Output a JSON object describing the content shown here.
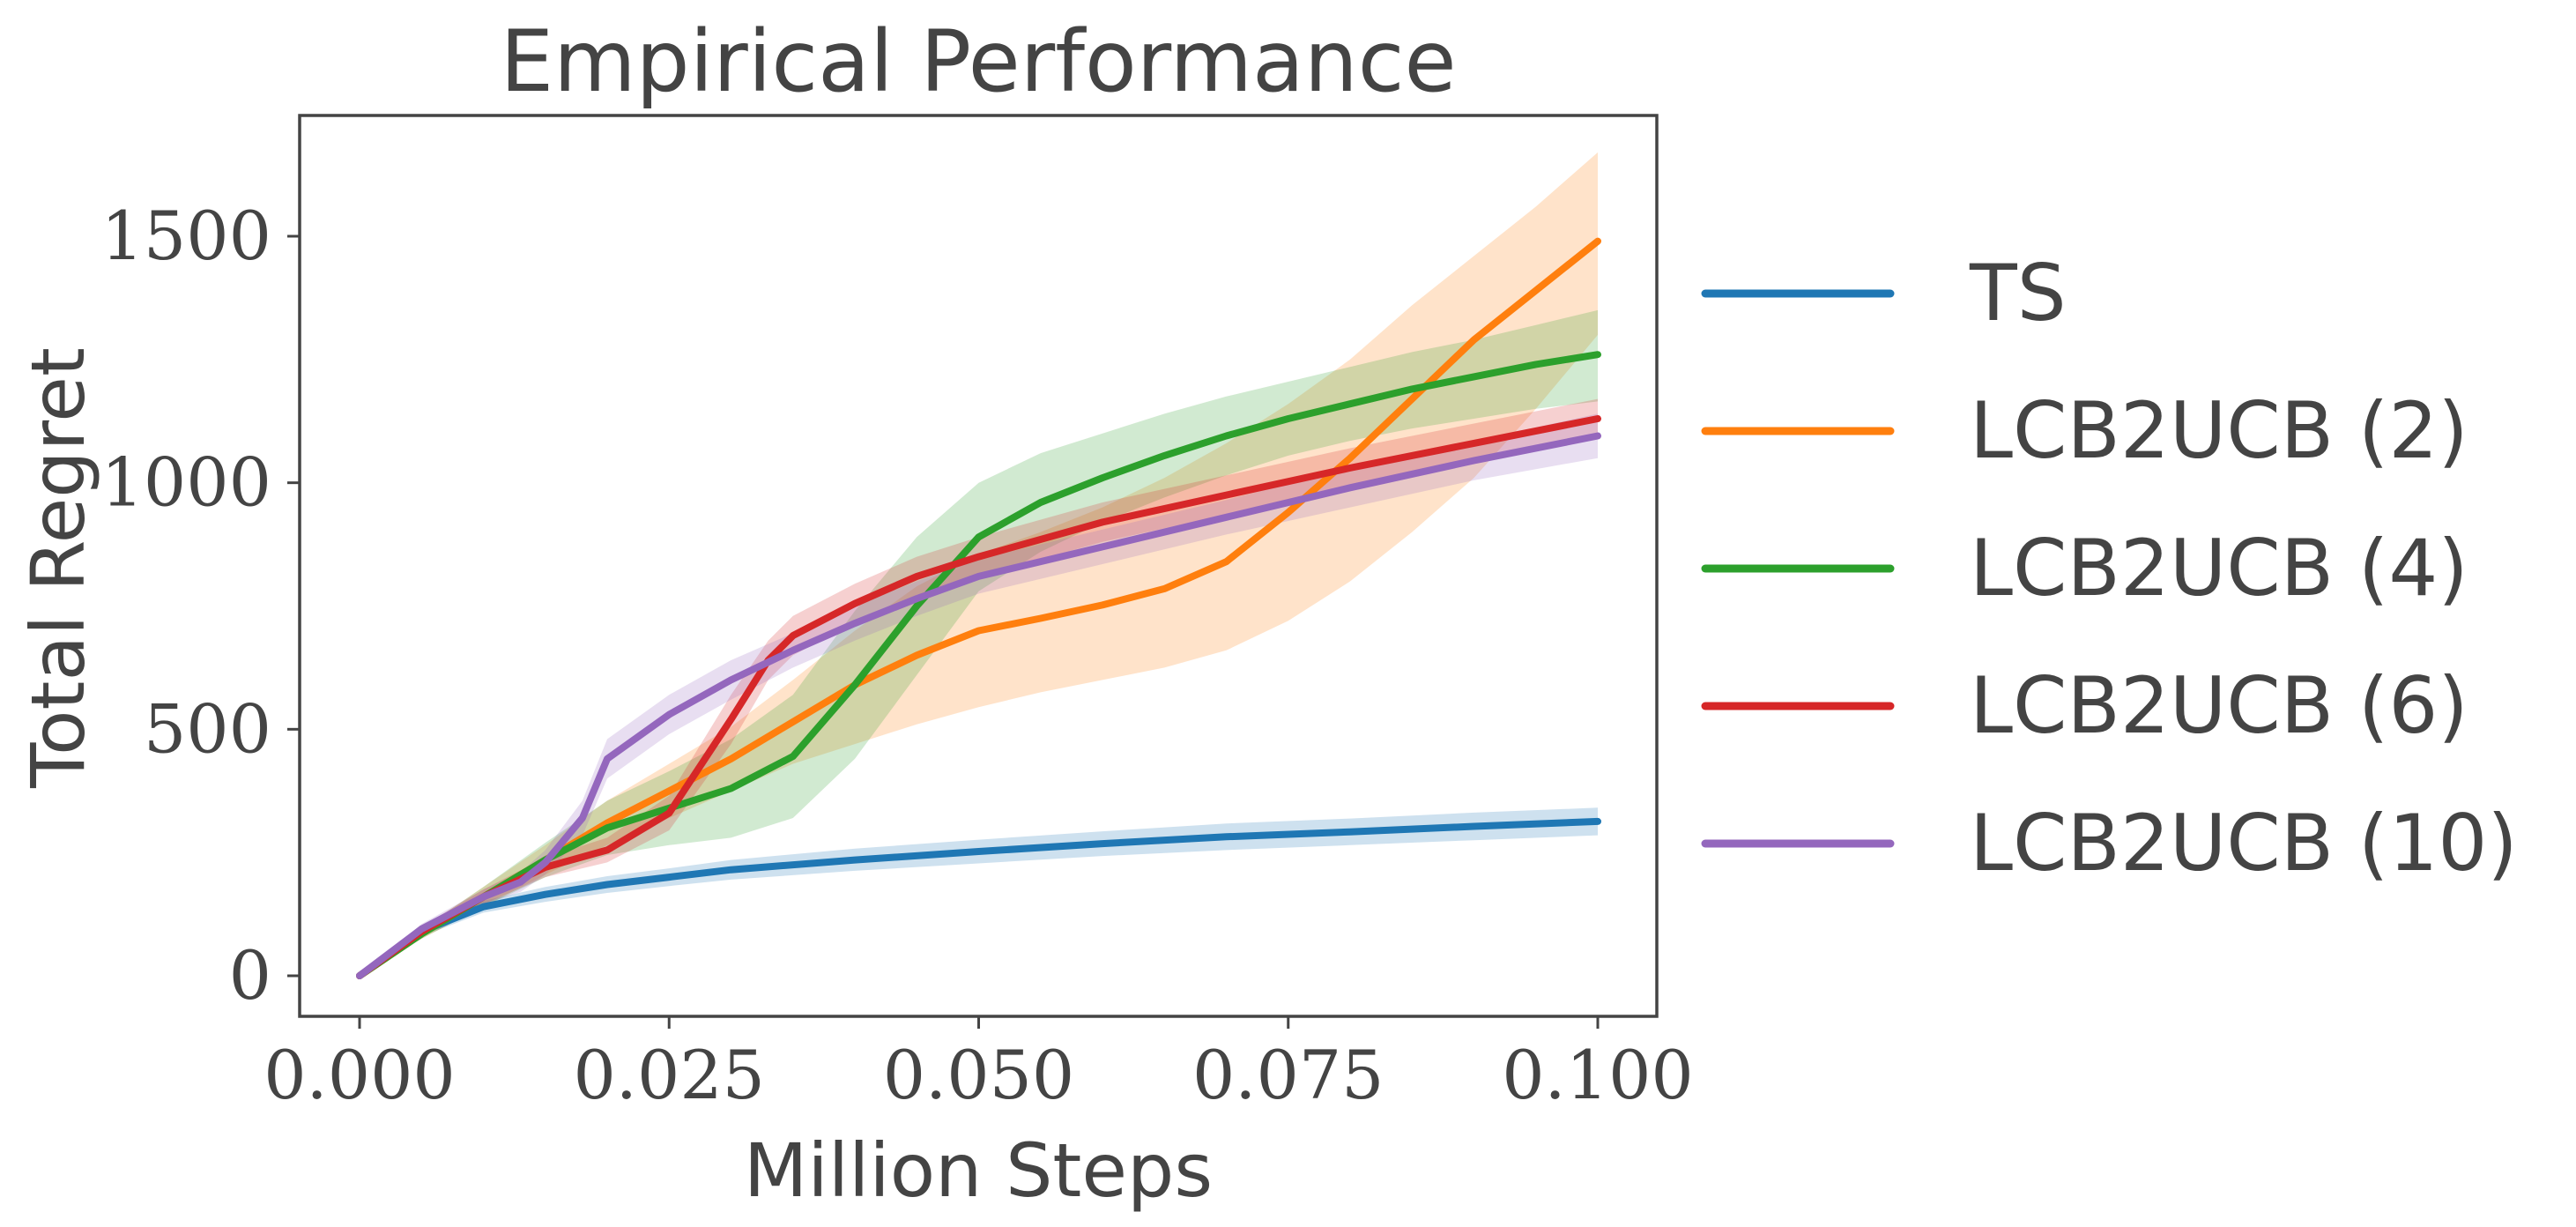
{
  "chart_data": {
    "type": "line",
    "title": "Empirical Performance",
    "xlabel": "Million Steps",
    "ylabel": "Total Regret",
    "xlim": [
      -0.01,
      0.101
    ],
    "ylim": [
      -80,
      1750
    ],
    "xticks": [
      0.0,
      0.025,
      0.05,
      0.075,
      0.1
    ],
    "xtick_labels": [
      "0.000",
      "0.025",
      "0.050",
      "0.075",
      "0.100"
    ],
    "yticks": [
      0,
      500,
      1000,
      1500
    ],
    "ytick_labels": [
      "0",
      "500",
      "1000",
      "1500"
    ],
    "grid": false,
    "legend_position": "right, outside plot",
    "series": [
      {
        "name": "TS",
        "color": "#1f77b4",
        "x": [
          0,
          0.005,
          0.01,
          0.015,
          0.02,
          0.025,
          0.03,
          0.04,
          0.05,
          0.06,
          0.07,
          0.08,
          0.09,
          0.1
        ],
        "y": [
          0,
          90,
          140,
          165,
          185,
          200,
          215,
          235,
          252,
          268,
          282,
          292,
          303,
          313
        ],
        "lower": [
          0,
          80,
          128,
          150,
          168,
          182,
          195,
          213,
          228,
          243,
          255,
          265,
          275,
          285
        ],
        "upper": [
          0,
          100,
          152,
          180,
          202,
          218,
          235,
          258,
          276,
          293,
          309,
          319,
          331,
          341
        ]
      },
      {
        "name": "LCB2UCB (2)",
        "color": "#ff7f0e",
        "x": [
          0,
          0.005,
          0.01,
          0.015,
          0.02,
          0.025,
          0.03,
          0.035,
          0.04,
          0.045,
          0.05,
          0.055,
          0.06,
          0.065,
          0.07,
          0.075,
          0.08,
          0.085,
          0.09,
          0.095,
          0.1
        ],
        "y": [
          0,
          85,
          160,
          235,
          310,
          375,
          440,
          515,
          590,
          650,
          700,
          725,
          752,
          785,
          840,
          940,
          1050,
          1170,
          1290,
          1390,
          1490
        ],
        "lower": [
          0,
          75,
          140,
          205,
          265,
          320,
          375,
          430,
          470,
          510,
          545,
          575,
          600,
          625,
          660,
          720,
          800,
          900,
          1010,
          1150,
          1300
        ],
        "upper": [
          0,
          95,
          180,
          265,
          355,
          430,
          505,
          600,
          700,
          790,
          855,
          900,
          950,
          1010,
          1080,
          1160,
          1250,
          1360,
          1460,
          1560,
          1670
        ]
      },
      {
        "name": "LCB2UCB (4)",
        "color": "#2ca02c",
        "x": [
          0,
          0.005,
          0.01,
          0.015,
          0.02,
          0.025,
          0.03,
          0.035,
          0.04,
          0.045,
          0.05,
          0.055,
          0.06,
          0.065,
          0.07,
          0.075,
          0.08,
          0.085,
          0.09,
          0.095,
          0.1
        ],
        "y": [
          0,
          85,
          160,
          235,
          300,
          340,
          380,
          445,
          590,
          750,
          890,
          960,
          1010,
          1055,
          1095,
          1130,
          1160,
          1190,
          1215,
          1240,
          1260
        ],
        "lower": [
          0,
          75,
          140,
          200,
          245,
          265,
          280,
          320,
          440,
          610,
          780,
          860,
          920,
          970,
          1015,
          1055,
          1085,
          1110,
          1130,
          1150,
          1165
        ],
        "upper": [
          0,
          95,
          180,
          270,
          355,
          415,
          480,
          570,
          740,
          890,
          1000,
          1060,
          1100,
          1140,
          1175,
          1205,
          1235,
          1265,
          1290,
          1320,
          1350
        ]
      },
      {
        "name": "LCB2UCB (6)",
        "color": "#d62728",
        "x": [
          0,
          0.005,
          0.01,
          0.015,
          0.02,
          0.025,
          0.03,
          0.033,
          0.035,
          0.04,
          0.045,
          0.05,
          0.06,
          0.07,
          0.08,
          0.09,
          0.1
        ],
        "y": [
          0,
          90,
          160,
          220,
          255,
          330,
          520,
          640,
          690,
          755,
          810,
          850,
          920,
          975,
          1030,
          1080,
          1130
        ],
        "lower": [
          0,
          80,
          145,
          200,
          230,
          295,
          470,
          600,
          650,
          715,
          770,
          810,
          880,
          935,
          990,
          1040,
          1090
        ],
        "upper": [
          0,
          100,
          175,
          240,
          280,
          365,
          570,
          680,
          730,
          795,
          850,
          890,
          960,
          1015,
          1070,
          1120,
          1170
        ]
      },
      {
        "name": "LCB2UCB (10)",
        "color": "#9467bd",
        "x": [
          0,
          0.005,
          0.01,
          0.013,
          0.015,
          0.018,
          0.02,
          0.025,
          0.03,
          0.035,
          0.04,
          0.045,
          0.05,
          0.06,
          0.07,
          0.08,
          0.09,
          0.1
        ],
        "y": [
          0,
          95,
          160,
          190,
          230,
          320,
          440,
          530,
          600,
          660,
          715,
          765,
          810,
          870,
          930,
          990,
          1045,
          1095
        ],
        "lower": [
          0,
          85,
          145,
          170,
          205,
          285,
          400,
          490,
          560,
          625,
          680,
          730,
          775,
          835,
          895,
          950,
          1005,
          1050
        ],
        "upper": [
          0,
          105,
          175,
          210,
          255,
          355,
          480,
          570,
          640,
          695,
          750,
          800,
          845,
          905,
          965,
          1030,
          1085,
          1140
        ]
      }
    ]
  }
}
